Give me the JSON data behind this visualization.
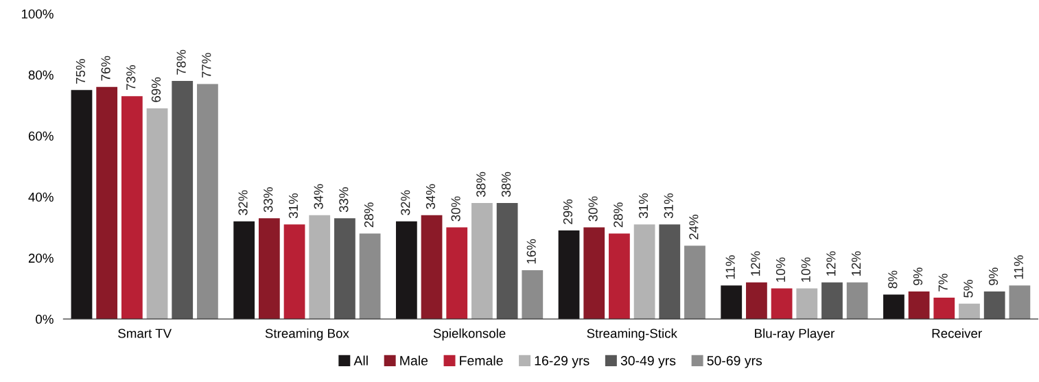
{
  "chart_data": {
    "type": "bar",
    "categories": [
      "Smart TV",
      "Streaming Box",
      "Spielkonsole",
      "Streaming-Stick",
      "Blu-ray Player",
      "Receiver"
    ],
    "series": [
      {
        "name": "All",
        "color": "#1a1718",
        "values": [
          75,
          32,
          32,
          29,
          11,
          8
        ],
        "value_labels": [
          "75%",
          "32%",
          "32%",
          "29%",
          "11%",
          "8%"
        ]
      },
      {
        "name": "Male",
        "color": "#8b1a28",
        "values": [
          76,
          33,
          34,
          30,
          12,
          9
        ],
        "value_labels": [
          "76%",
          "33%",
          "34%",
          "30%",
          "12%",
          "9%"
        ]
      },
      {
        "name": "Female",
        "color": "#b92035",
        "values": [
          73,
          31,
          30,
          28,
          10,
          7
        ],
        "value_labels": [
          "73%",
          "31%",
          "30%",
          "28%",
          "10%",
          "7%"
        ]
      },
      {
        "name": "16-29 yrs",
        "color": "#b3b3b3",
        "values": [
          69,
          34,
          38,
          31,
          10,
          5
        ],
        "value_labels": [
          "69%",
          "34%",
          "38%",
          "31%",
          "10%",
          "5%"
        ]
      },
      {
        "name": "30-49 yrs",
        "color": "#575757",
        "values": [
          78,
          33,
          38,
          31,
          12,
          9
        ],
        "value_labels": [
          "78%",
          "33%",
          "38%",
          "31%",
          "12%",
          "9%"
        ]
      },
      {
        "name": "50-69 yrs",
        "color": "#8c8c8c",
        "values": [
          77,
          28,
          16,
          24,
          12,
          11
        ],
        "value_labels": [
          "77%",
          "28%",
          "16%",
          "24%",
          "12%",
          "11%"
        ]
      }
    ],
    "ylim": [
      0,
      100
    ],
    "yticks": [
      {
        "value": 0,
        "label": "0%"
      },
      {
        "value": 20,
        "label": "20%"
      },
      {
        "value": 40,
        "label": "40%"
      },
      {
        "value": 60,
        "label": "60%"
      },
      {
        "value": 80,
        "label": "80%"
      },
      {
        "value": 100,
        "label": "100%"
      }
    ],
    "grid": false,
    "legend": "bottom"
  }
}
